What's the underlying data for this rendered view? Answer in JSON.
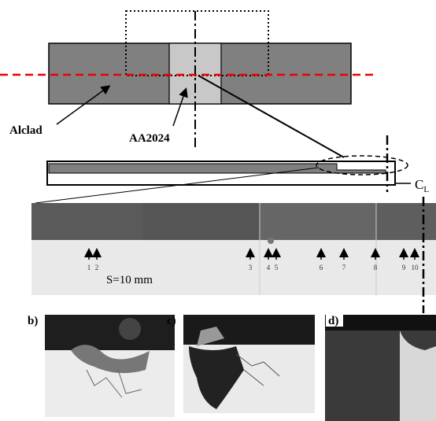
{
  "diagram": {
    "labels": {
      "alclad": "Alclad",
      "aa2024": "AA2024",
      "centerline": "C",
      "centerline_sub": "L",
      "spacing": "S=10 mm"
    },
    "arrow_numbers": [
      "1",
      "2",
      "3",
      "4",
      "5",
      "6",
      "7",
      "8",
      "9",
      "10"
    ],
    "panels": [
      "b)",
      "c)",
      "d)"
    ]
  }
}
